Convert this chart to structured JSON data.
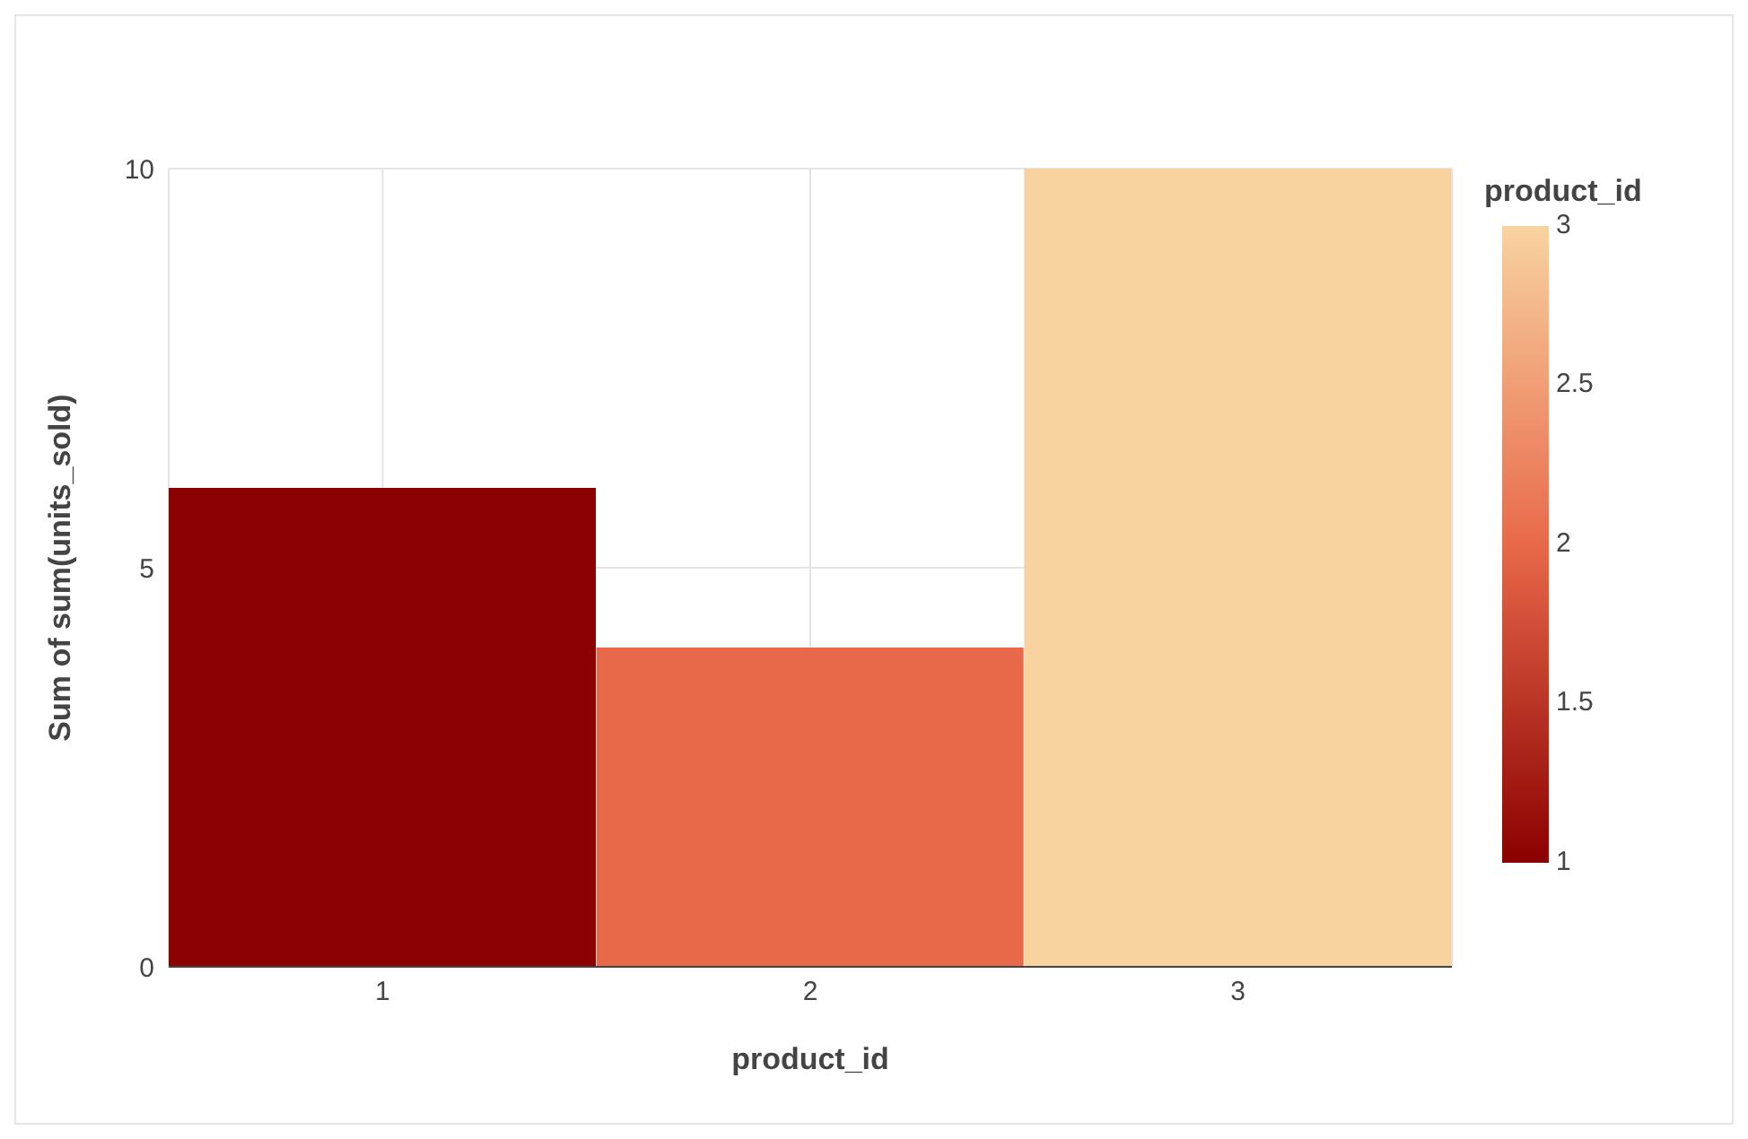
{
  "chart_data": {
    "type": "bar",
    "xlabel": "product_id",
    "ylabel": "Sum of sum(units_sold)",
    "clabel": "product_id",
    "x": [
      1,
      2,
      3
    ],
    "values": [
      6,
      4,
      10
    ],
    "colors": [
      "#8b0000",
      "#e8694a",
      "#f8d3a0"
    ],
    "cvalues": [
      1,
      2,
      3
    ],
    "xlim": [
      0.5,
      3.5
    ],
    "xticks": [
      1,
      2,
      3
    ],
    "ylim": [
      0,
      10
    ],
    "yticks": [
      0,
      5,
      10
    ],
    "clim": [
      1,
      3
    ],
    "cticks": [
      1,
      1.5,
      2,
      2.5,
      3
    ],
    "grid": true
  }
}
